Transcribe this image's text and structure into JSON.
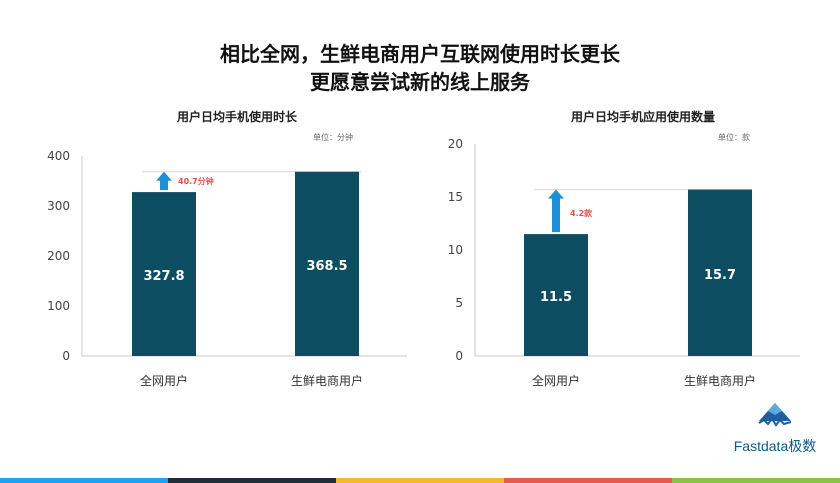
{
  "headline": {
    "line1": "相比全网，生鲜电商用户互联网使用时长更长",
    "line2": "更愿意尝试新的线上服务"
  },
  "colors": {
    "bar": "#0d4d62",
    "arrow": "#1e90d6",
    "annotation": "#e0524a",
    "footer": [
      "#1da1f2",
      "#1f2d3a",
      "#f2b92e",
      "#e55b4d",
      "#8bc34a"
    ]
  },
  "chart_data": [
    {
      "type": "bar",
      "title": "用户日均手机使用时长",
      "unit": "单位：分钟",
      "categories": [
        "全网用户",
        "生鲜电商用户"
      ],
      "values": [
        327.8,
        368.5
      ],
      "value_labels": [
        "327.8",
        "368.5"
      ],
      "ylim": [
        0,
        400
      ],
      "yticks": [
        0,
        100,
        200,
        300,
        400
      ],
      "annotation": "40.7分钟"
    },
    {
      "type": "bar",
      "title": "用户日均手机应用使用数量",
      "unit": "单位：款",
      "categories": [
        "全网用户",
        "生鲜电商用户"
      ],
      "values": [
        11.5,
        15.7
      ],
      "value_labels": [
        "11.5",
        "15.7"
      ],
      "ylim": [
        0,
        20
      ],
      "yticks": [
        0,
        5,
        10,
        15,
        20
      ],
      "annotation": "4.2款"
    }
  ],
  "logo": {
    "text": "Fastdata极数",
    "icon": "mountain-logo-icon"
  }
}
